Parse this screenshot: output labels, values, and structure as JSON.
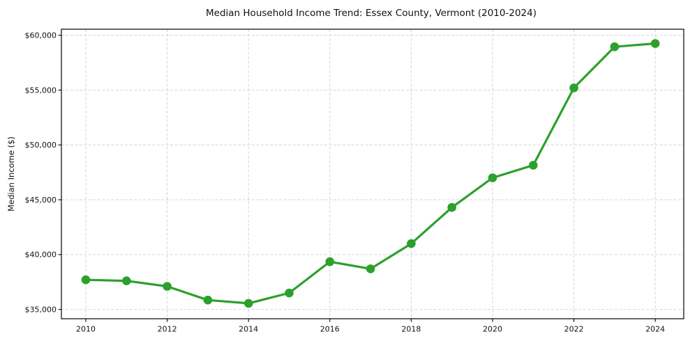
{
  "chart_data": {
    "type": "line",
    "title": "Median Household Income Trend: Essex County, Vermont (2010-2024)",
    "xlabel": "",
    "ylabel": "Median Income ($)",
    "x": [
      2010,
      2011,
      2012,
      2013,
      2014,
      2015,
      2016,
      2017,
      2018,
      2019,
      2020,
      2021,
      2022,
      2023,
      2024
    ],
    "series": [
      {
        "name": "Median Household Income",
        "values": [
          37700,
          37600,
          37100,
          35850,
          35550,
          36500,
          39350,
          38700,
          41000,
          44300,
          47000,
          48150,
          55200,
          58950,
          59250
        ]
      }
    ],
    "xticks": [
      2010,
      2012,
      2014,
      2016,
      2018,
      2020,
      2022,
      2024
    ],
    "xtick_labels": [
      "2010",
      "2012",
      "2014",
      "2016",
      "2018",
      "2020",
      "2022",
      "2024"
    ],
    "yticks": [
      35000,
      40000,
      45000,
      50000,
      55000,
      60000
    ],
    "ytick_labels": [
      "$35,000",
      "$40,000",
      "$45,000",
      "$50,000",
      "$55,000",
      "$60,000"
    ],
    "xlim": [
      2009.4,
      2024.7
    ],
    "ylim": [
      34150,
      60550
    ],
    "grid": true,
    "grid_style": "dashed",
    "legend": "none",
    "line_color": "#2ca02c",
    "marker": "circle",
    "background": "#ffffff"
  }
}
